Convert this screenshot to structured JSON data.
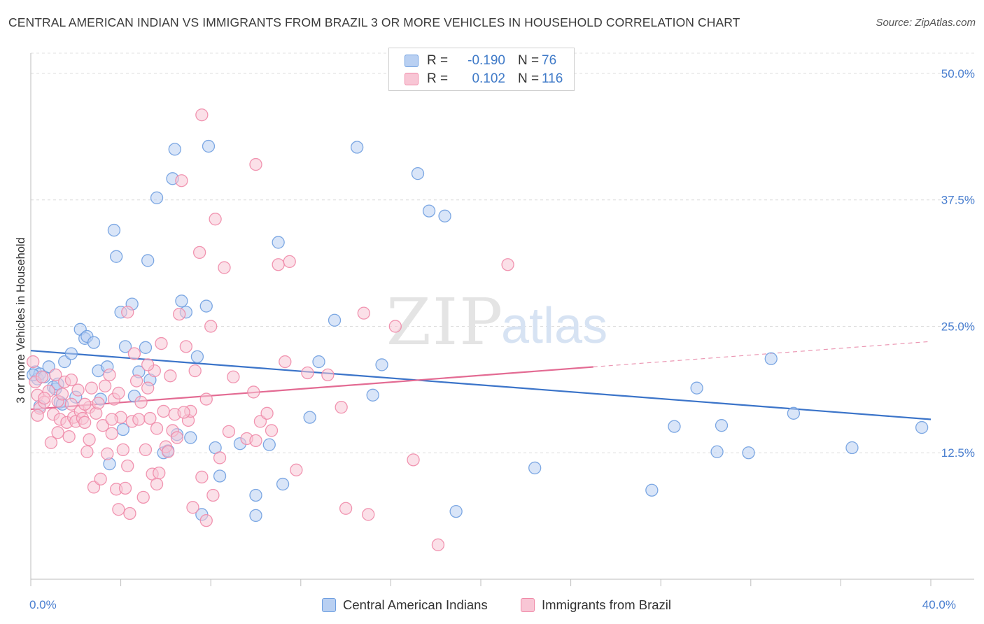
{
  "title": "CENTRAL AMERICAN INDIAN VS IMMIGRANTS FROM BRAZIL 3 OR MORE VEHICLES IN HOUSEHOLD CORRELATION CHART",
  "source": "Source: ZipAtlas.com",
  "watermark": {
    "zip": "ZIP",
    "atlas": "atlas"
  },
  "legend_top": {
    "rows": [
      {
        "r_label": "R =",
        "r_value": "-0.190",
        "n_label": "N =",
        "n_value": "76"
      },
      {
        "r_label": "R =",
        "r_value": "0.102",
        "n_label": "N =",
        "n_value": "116"
      }
    ]
  },
  "chart_data": {
    "type": "scatter",
    "title": "CENTRAL AMERICAN INDIAN VS IMMIGRANTS FROM BRAZIL 3 OR MORE VEHICLES IN HOUSEHOLD CORRELATION CHART",
    "xlabel": "",
    "ylabel": "3 or more Vehicles in Household",
    "xlim": [
      0,
      40
    ],
    "ylim": [
      0,
      52
    ],
    "x_tick_labels": [
      {
        "v": 0,
        "t": "0.0%"
      },
      {
        "v": 40,
        "t": "40.0%"
      }
    ],
    "y_tick_labels": [
      {
        "v": 12.5,
        "t": "12.5%"
      },
      {
        "v": 25,
        "t": "25.0%"
      },
      {
        "v": 37.5,
        "t": "37.5%"
      },
      {
        "v": 50,
        "t": "50.0%"
      }
    ],
    "x_minor_ticks": [
      0,
      4,
      8,
      12,
      16,
      20,
      24,
      28,
      32,
      36,
      40
    ],
    "grid": true,
    "series": [
      {
        "name": "Central American Indians",
        "color": "#6f9fe0",
        "fill": "#b9d0f2",
        "r": "-0.190",
        "n": "76",
        "trend": {
          "x0": 0,
          "y0": 22.6,
          "x1": 40,
          "y1": 15.8,
          "dashed_from": null
        },
        "points": [
          [
            0.2,
            20.5
          ],
          [
            0.3,
            19.8
          ],
          [
            0.4,
            20.3
          ],
          [
            0.4,
            17.1
          ],
          [
            0.6,
            20.0
          ],
          [
            0.8,
            21.0
          ],
          [
            1.0,
            19.0
          ],
          [
            1.1,
            18.8
          ],
          [
            1.2,
            19.3
          ],
          [
            1.3,
            17.5
          ],
          [
            1.4,
            17.3
          ],
          [
            1.5,
            21.5
          ],
          [
            1.8,
            22.3
          ],
          [
            2.0,
            18.0
          ],
          [
            2.2,
            24.7
          ],
          [
            2.4,
            23.8
          ],
          [
            2.5,
            24.0
          ],
          [
            2.8,
            23.4
          ],
          [
            3.0,
            20.6
          ],
          [
            3.1,
            17.8
          ],
          [
            3.4,
            21.0
          ],
          [
            3.5,
            11.4
          ],
          [
            3.7,
            34.5
          ],
          [
            3.8,
            31.9
          ],
          [
            4.0,
            26.4
          ],
          [
            4.1,
            14.8
          ],
          [
            4.2,
            23.0
          ],
          [
            4.5,
            27.2
          ],
          [
            4.6,
            18.1
          ],
          [
            4.8,
            20.5
          ],
          [
            5.1,
            22.9
          ],
          [
            5.2,
            31.5
          ],
          [
            5.3,
            19.7
          ],
          [
            5.6,
            37.7
          ],
          [
            5.9,
            12.5
          ],
          [
            6.1,
            12.7
          ],
          [
            6.3,
            39.6
          ],
          [
            6.4,
            42.5
          ],
          [
            6.5,
            14.3
          ],
          [
            6.7,
            27.5
          ],
          [
            6.9,
            26.4
          ],
          [
            7.1,
            14.0
          ],
          [
            7.4,
            22.0
          ],
          [
            7.6,
            6.4
          ],
          [
            7.8,
            27.0
          ],
          [
            7.9,
            42.8
          ],
          [
            8.2,
            13.0
          ],
          [
            8.4,
            10.2
          ],
          [
            9.3,
            13.4
          ],
          [
            10.0,
            8.3
          ],
          [
            10.0,
            6.3
          ],
          [
            10.6,
            13.3
          ],
          [
            11.0,
            33.3
          ],
          [
            11.2,
            9.4
          ],
          [
            12.4,
            16.0
          ],
          [
            12.8,
            21.5
          ],
          [
            13.5,
            25.6
          ],
          [
            14.5,
            42.7
          ],
          [
            15.2,
            18.2
          ],
          [
            15.6,
            21.2
          ],
          [
            17.2,
            40.1
          ],
          [
            17.7,
            36.4
          ],
          [
            18.4,
            35.9
          ],
          [
            18.9,
            6.7
          ],
          [
            22.4,
            11.0
          ],
          [
            27.6,
            8.8
          ],
          [
            28.6,
            15.1
          ],
          [
            29.6,
            18.9
          ],
          [
            30.5,
            12.6
          ],
          [
            30.7,
            15.2
          ],
          [
            31.9,
            12.5
          ],
          [
            32.9,
            21.8
          ],
          [
            33.9,
            16.4
          ],
          [
            36.5,
            13.0
          ],
          [
            39.6,
            15.0
          ],
          [
            0.1,
            20.2
          ]
        ]
      },
      {
        "name": "Immigrants from Brazil",
        "color": "#f08aa8",
        "fill": "#f8c6d5",
        "r": "0.102",
        "n": "116",
        "trend": {
          "x0": 0,
          "y0": 16.8,
          "x1": 40,
          "y1": 23.5,
          "dashed_from": 25
        },
        "points": [
          [
            0.1,
            21.5
          ],
          [
            0.2,
            19.5
          ],
          [
            0.3,
            18.2
          ],
          [
            0.4,
            16.9
          ],
          [
            0.5,
            20.0
          ],
          [
            0.6,
            17.5
          ],
          [
            0.8,
            18.6
          ],
          [
            0.9,
            13.5
          ],
          [
            1.0,
            16.3
          ],
          [
            1.1,
            20.2
          ],
          [
            1.2,
            17.6
          ],
          [
            1.3,
            15.8
          ],
          [
            1.4,
            18.3
          ],
          [
            1.5,
            19.5
          ],
          [
            1.6,
            15.5
          ],
          [
            1.7,
            14.1
          ],
          [
            1.8,
            17.3
          ],
          [
            1.9,
            16.0
          ],
          [
            2.0,
            15.6
          ],
          [
            2.1,
            18.7
          ],
          [
            2.2,
            16.6
          ],
          [
            2.3,
            15.9
          ],
          [
            2.4,
            15.5
          ],
          [
            2.5,
            12.6
          ],
          [
            2.6,
            17.0
          ],
          [
            2.7,
            18.9
          ],
          [
            2.8,
            9.1
          ],
          [
            2.9,
            16.4
          ],
          [
            3.0,
            17.4
          ],
          [
            3.1,
            9.9
          ],
          [
            3.2,
            15.2
          ],
          [
            3.3,
            19.1
          ],
          [
            3.4,
            12.4
          ],
          [
            3.5,
            20.2
          ],
          [
            3.6,
            14.4
          ],
          [
            3.7,
            17.8
          ],
          [
            3.8,
            8.9
          ],
          [
            3.9,
            6.9
          ],
          [
            4.0,
            16.0
          ],
          [
            4.1,
            12.8
          ],
          [
            4.2,
            9.0
          ],
          [
            4.3,
            11.2
          ],
          [
            4.4,
            6.5
          ],
          [
            4.5,
            15.6
          ],
          [
            4.6,
            22.3
          ],
          [
            4.7,
            19.6
          ],
          [
            4.8,
            15.8
          ],
          [
            4.9,
            17.5
          ],
          [
            5.0,
            8.1
          ],
          [
            5.1,
            12.8
          ],
          [
            5.2,
            18.9
          ],
          [
            5.3,
            15.9
          ],
          [
            5.4,
            10.4
          ],
          [
            5.5,
            20.6
          ],
          [
            5.6,
            14.9
          ],
          [
            5.7,
            10.5
          ],
          [
            5.8,
            23.3
          ],
          [
            5.9,
            16.6
          ],
          [
            6.0,
            13.1
          ],
          [
            6.1,
            12.6
          ],
          [
            6.2,
            20.1
          ],
          [
            6.3,
            14.7
          ],
          [
            6.4,
            16.3
          ],
          [
            6.5,
            14.0
          ],
          [
            6.6,
            26.2
          ],
          [
            6.7,
            39.4
          ],
          [
            6.9,
            23.0
          ],
          [
            7.0,
            15.7
          ],
          [
            7.1,
            16.6
          ],
          [
            7.2,
            7.1
          ],
          [
            7.5,
            32.3
          ],
          [
            7.6,
            10.1
          ],
          [
            7.8,
            17.8
          ],
          [
            7.8,
            5.8
          ],
          [
            8.0,
            25.0
          ],
          [
            8.1,
            8.3
          ],
          [
            8.2,
            35.6
          ],
          [
            8.4,
            12.0
          ],
          [
            8.6,
            30.8
          ],
          [
            9.0,
            20.0
          ],
          [
            9.6,
            13.9
          ],
          [
            10.0,
            13.7
          ],
          [
            10.0,
            41.0
          ],
          [
            10.2,
            15.6
          ],
          [
            10.5,
            16.4
          ],
          [
            10.7,
            14.7
          ],
          [
            11.0,
            31.1
          ],
          [
            11.3,
            21.5
          ],
          [
            11.5,
            31.4
          ],
          [
            11.8,
            10.8
          ],
          [
            12.3,
            20.4
          ],
          [
            13.2,
            20.2
          ],
          [
            13.8,
            17.0
          ],
          [
            14.0,
            7.0
          ],
          [
            14.8,
            26.3
          ],
          [
            15.0,
            6.4
          ],
          [
            16.2,
            25.0
          ],
          [
            17.0,
            11.8
          ],
          [
            18.1,
            3.4
          ],
          [
            21.2,
            31.1
          ],
          [
            4.3,
            26.4
          ],
          [
            3.6,
            15.8
          ],
          [
            1.2,
            14.5
          ],
          [
            0.6,
            17.9
          ],
          [
            2.4,
            17.3
          ],
          [
            5.6,
            9.4
          ],
          [
            6.8,
            16.5
          ],
          [
            7.3,
            20.6
          ],
          [
            8.8,
            14.6
          ],
          [
            9.9,
            18.5
          ],
          [
            0.3,
            16.2
          ],
          [
            1.8,
            19.7
          ],
          [
            3.9,
            18.4
          ],
          [
            5.2,
            21.2
          ],
          [
            7.6,
            45.9
          ],
          [
            2.6,
            13.8
          ]
        ]
      }
    ]
  }
}
